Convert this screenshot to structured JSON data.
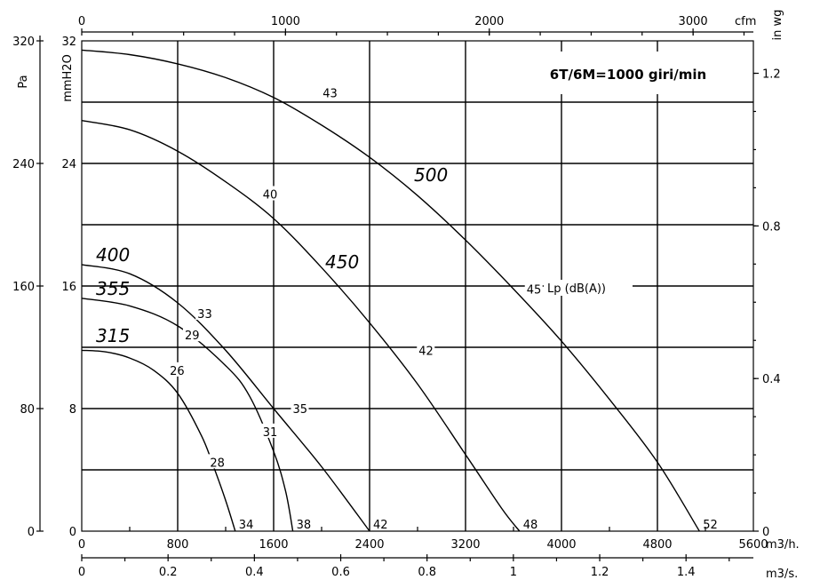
{
  "chart_data": {
    "type": "line",
    "title": "6T/6M=1000 giri/min",
    "x_axes": {
      "bottom": {
        "unit": "m3/h.",
        "ticks": [
          "0",
          "800",
          "1600",
          "2400",
          "3200",
          "4000",
          "4800",
          "5600"
        ],
        "range": [
          0,
          5600
        ]
      },
      "bottom2": {
        "unit": "m3/s.",
        "ticks": [
          "0",
          "0.2",
          "0.4",
          "0.6",
          "0.8",
          "1",
          "1.2",
          "1.4"
        ],
        "range": [
          0,
          1.556
        ]
      },
      "top": {
        "unit": "cfm",
        "ticks": [
          "0",
          "1000",
          "2000",
          "3000"
        ],
        "range": [
          0,
          3296
        ]
      }
    },
    "y_axes": {
      "left_outer": {
        "unit": "Pa",
        "ticks": [
          "0",
          "80",
          "160",
          "240",
          "320"
        ],
        "range": [
          0,
          320
        ]
      },
      "left_inner": {
        "unit": "mmH2O",
        "ticks": [
          "0",
          "8",
          "16",
          "24",
          "32"
        ],
        "range": [
          0,
          32
        ]
      },
      "right": {
        "unit": "in wg",
        "ticks": [
          "0",
          "0.4",
          "0.8",
          "1.2"
        ],
        "range": [
          0,
          1.285
        ]
      }
    },
    "series": [
      {
        "name": "315",
        "points": [
          [
            0,
            118
          ],
          [
            200,
            117
          ],
          [
            400,
            113
          ],
          [
            600,
            105
          ],
          [
            800,
            90
          ],
          [
            1000,
            62
          ],
          [
            1100,
            42
          ],
          [
            1200,
            20
          ],
          [
            1280,
            0
          ]
        ],
        "point_labels": [
          {
            "text": "26",
            "x": 675,
            "y": 105
          },
          {
            "text": "28",
            "x": 1010,
            "y": 45
          },
          {
            "text": "34",
            "x": 1280,
            "y": 0
          }
        ]
      },
      {
        "name": "355",
        "points": [
          [
            0,
            152
          ],
          [
            400,
            147
          ],
          [
            800,
            134
          ],
          [
            1200,
            108
          ],
          [
            1400,
            88
          ],
          [
            1600,
            52
          ],
          [
            1700,
            26
          ],
          [
            1760,
            0
          ]
        ],
        "point_labels": [
          {
            "text": "29",
            "x": 800,
            "y": 128
          },
          {
            "text": "31",
            "x": 1450,
            "y": 65
          },
          {
            "text": "38",
            "x": 1760,
            "y": 0
          }
        ]
      },
      {
        "name": "400",
        "points": [
          [
            0,
            174
          ],
          [
            400,
            168
          ],
          [
            800,
            149
          ],
          [
            1200,
            118
          ],
          [
            1600,
            80
          ],
          [
            2000,
            42
          ],
          [
            2400,
            0
          ]
        ],
        "point_labels": [
          {
            "text": "33",
            "x": 905,
            "y": 142
          },
          {
            "text": "35",
            "x": 1700,
            "y": 80
          },
          {
            "text": "42",
            "x": 2400,
            "y": 0
          }
        ]
      },
      {
        "name": "450",
        "points": [
          [
            0,
            268
          ],
          [
            400,
            262
          ],
          [
            800,
            248
          ],
          [
            1200,
            228
          ],
          [
            1600,
            204
          ],
          [
            2000,
            172
          ],
          [
            2400,
            136
          ],
          [
            2800,
            96
          ],
          [
            3200,
            50
          ],
          [
            3500,
            15
          ],
          [
            3650,
            0
          ]
        ],
        "point_labels": [
          {
            "text": "40",
            "x": 1450,
            "y": 220
          },
          {
            "text": "42",
            "x": 2750,
            "y": 118
          },
          {
            "text": "48",
            "x": 3650,
            "y": 0
          }
        ]
      },
      {
        "name": "500",
        "points": [
          [
            0,
            314
          ],
          [
            400,
            311
          ],
          [
            800,
            305
          ],
          [
            1200,
            296
          ],
          [
            1600,
            283
          ],
          [
            2000,
            265
          ],
          [
            2400,
            244
          ],
          [
            2800,
            219
          ],
          [
            3200,
            190
          ],
          [
            3600,
            158
          ],
          [
            4000,
            124
          ],
          [
            4400,
            86
          ],
          [
            4800,
            45
          ],
          [
            5150,
            0
          ]
        ],
        "point_labels": [
          {
            "text": "43",
            "x": 1950,
            "y": 286
          },
          {
            "text": "45",
            "x": 3650,
            "y": 158
          },
          {
            "text": "52",
            "x": 5150,
            "y": 0
          }
        ]
      }
    ],
    "lp_unit_label": "Lp  (dB(A))",
    "grid": true
  }
}
